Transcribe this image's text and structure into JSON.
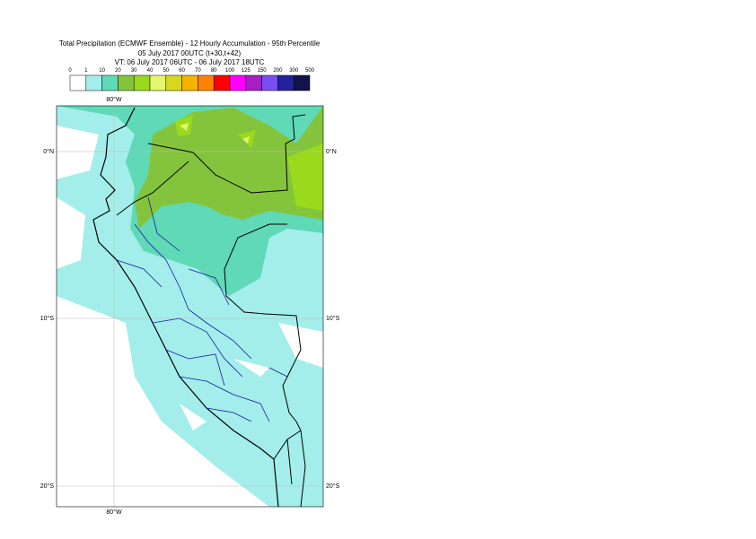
{
  "header": {
    "title": "Total Precipitation (ECMWF Ensemble) - 12 Hourly Accumulation - 95th Percentile",
    "run": "05 July 2017 00UTC (t+30,t+42)",
    "valid": "VT: 06 July 2017 06UTC - 06 July 2017 18UTC"
  },
  "legend": {
    "levels": [
      "0",
      "1",
      "10",
      "20",
      "30",
      "40",
      "50",
      "60",
      "70",
      "80",
      "100",
      "125",
      "150",
      "200",
      "300",
      "500"
    ],
    "colors": [
      "#ffffff",
      "#a3eeea",
      "#5fd9b6",
      "#84c43c",
      "#9ad91c",
      "#e6f56e",
      "#d6d81f",
      "#f4b400",
      "#ff8300",
      "#ff0000",
      "#ff00ff",
      "#a51fc2",
      "#7a4df0",
      "#22229c",
      "#12124d"
    ]
  },
  "map": {
    "lon_top": "80°W",
    "lon_bottom": "80°W",
    "lat_left": [
      "0°N",
      "10°S",
      "20°S"
    ],
    "lat_right": [
      "0°N",
      "10°S",
      "20°S"
    ]
  }
}
